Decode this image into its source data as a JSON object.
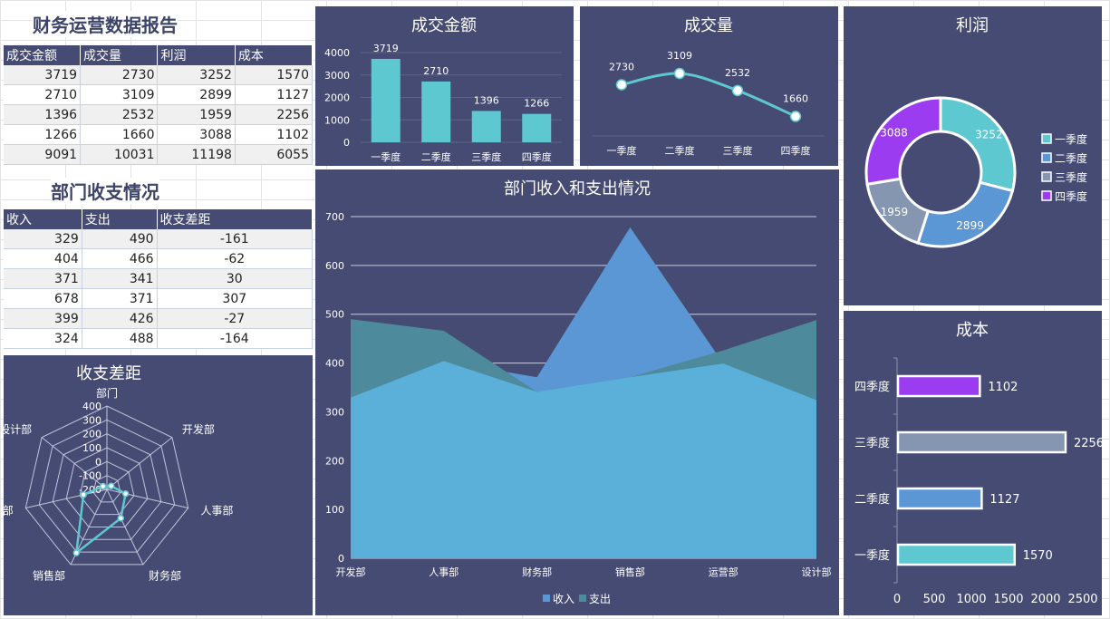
{
  "report_title": "财务运营数据报告",
  "dept_title": "部门收支情况",
  "table1": {
    "headers": [
      "成交金额",
      "成交量",
      "利润",
      "成本"
    ],
    "rows": [
      [
        "3719",
        "2730",
        "3252",
        "1570"
      ],
      [
        "2710",
        "3109",
        "2899",
        "1127"
      ],
      [
        "1396",
        "2532",
        "1959",
        "2256"
      ],
      [
        "1266",
        "1660",
        "3088",
        "1102"
      ],
      [
        "9091",
        "10031",
        "11198",
        "6055"
      ]
    ]
  },
  "table2": {
    "headers": [
      "收入",
      "支出",
      "收支差距"
    ],
    "rows": [
      [
        "329",
        "490",
        "-161"
      ],
      [
        "404",
        "466",
        "-62"
      ],
      [
        "371",
        "341",
        "30"
      ],
      [
        "678",
        "371",
        "307"
      ],
      [
        "399",
        "426",
        "-27"
      ],
      [
        "324",
        "488",
        "-164"
      ]
    ]
  },
  "chart_data": [
    {
      "id": "amount",
      "type": "bar",
      "title": "成交金额",
      "categories": [
        "一季度",
        "二季度",
        "三季度",
        "四季度"
      ],
      "values": [
        3719,
        2710,
        1396,
        1266
      ],
      "ylim": [
        0,
        4000
      ],
      "yticks": [
        0,
        1000,
        2000,
        3000,
        4000
      ],
      "color": "#5ec8d0"
    },
    {
      "id": "volume",
      "type": "line",
      "title": "成交量",
      "categories": [
        "一季度",
        "二季度",
        "三季度",
        "四季度"
      ],
      "values": [
        2730,
        3109,
        2532,
        1660
      ],
      "color": "#5ec8d0"
    },
    {
      "id": "profit",
      "type": "pie",
      "title": "利润",
      "categories": [
        "一季度",
        "二季度",
        "三季度",
        "四季度"
      ],
      "values": [
        3252,
        2899,
        1959,
        3088
      ],
      "colors": [
        "#5ec8d0",
        "#5b97d5",
        "#8496b0",
        "#9b3cf0"
      ],
      "legend": "right"
    },
    {
      "id": "dept",
      "type": "area",
      "title": "部门收入和支出情况",
      "categories": [
        "开发部",
        "人事部",
        "财务部",
        "销售部",
        "运营部",
        "设计部"
      ],
      "series": [
        {
          "name": "收入",
          "values": [
            329,
            404,
            371,
            678,
            399,
            324
          ],
          "color": "#5b97d5"
        },
        {
          "name": "支出",
          "values": [
            490,
            466,
            341,
            371,
            426,
            488
          ],
          "color": "#4d8a9c"
        }
      ],
      "ylim": [
        0,
        700
      ],
      "yticks": [
        0,
        100,
        200,
        300,
        400,
        500,
        600,
        700
      ],
      "overlap_color": "#5ab0d8",
      "legend": "bottom"
    },
    {
      "id": "cost",
      "type": "bar",
      "orientation": "horizontal",
      "title": "成本",
      "categories": [
        "一季度",
        "二季度",
        "三季度",
        "四季度"
      ],
      "values": [
        1570,
        1127,
        2256,
        1102
      ],
      "colors": [
        "#5ec8d0",
        "#5b97d5",
        "#8496b0",
        "#9b3cf0"
      ],
      "xlim": [
        0,
        2500
      ],
      "xticks": [
        0,
        500,
        1000,
        1500,
        2000,
        2500
      ]
    },
    {
      "id": "gap",
      "type": "radar",
      "title": "收支差距",
      "categories": [
        "部门",
        "开发部",
        "人事部",
        "财务部",
        "销售部",
        "营部",
        "设计部"
      ],
      "values": [
        null,
        -161,
        -62,
        30,
        307,
        -27,
        -164
      ],
      "ticks": [
        -200,
        -100,
        0,
        100,
        200,
        300,
        400
      ],
      "range": [
        -200,
        400
      ],
      "color": "#5ec8d0"
    }
  ]
}
